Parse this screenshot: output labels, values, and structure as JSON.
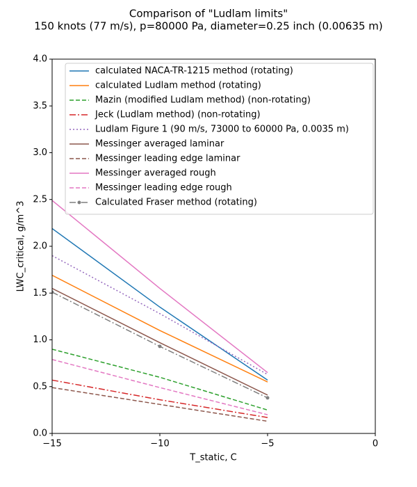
{
  "chart_data": {
    "type": "line",
    "title": "Comparison of \"Ludlam limits\"",
    "subtitle": "150 knots (77 m/s), p=80000 Pa, diameter=0.25 inch (0.00635 m)",
    "x_label": "T_static, C",
    "y_label": "LWC_critical, g/m^3",
    "x": [
      -15,
      -10,
      -5
    ],
    "xlim": [
      -15,
      0
    ],
    "xticks": [
      {
        "value": -15,
        "label": "−15"
      },
      {
        "value": -10,
        "label": "−10"
      },
      {
        "value": -5,
        "label": "−5"
      },
      0
    ],
    "ylim": [
      0,
      4
    ],
    "yticks": [
      {
        "value": 0,
        "label": "0.0"
      },
      {
        "value": 0.5,
        "label": "0.5"
      },
      {
        "value": 1,
        "label": "1.0"
      },
      {
        "value": 1.5,
        "label": "1.5"
      },
      {
        "value": 2,
        "label": "2.0"
      },
      {
        "value": 2.5,
        "label": "2.5"
      },
      {
        "value": 3,
        "label": "3.0"
      },
      {
        "value": 3.5,
        "label": "3.5"
      },
      {
        "value": 4,
        "label": "4.0"
      }
    ],
    "legend": "upper right",
    "series": [
      {
        "name": "calculated NACA-TR-1215 method (rotating)",
        "color": "#1f77b4",
        "linestyle": "solid",
        "values": [
          2.19,
          1.35,
          0.57
        ]
      },
      {
        "name": "calculated Ludlam method (rotating)",
        "color": "#ff7f0e",
        "linestyle": "solid",
        "values": [
          1.69,
          1.1,
          0.55
        ]
      },
      {
        "name": "Mazin (modified Ludlam method) (non-rotating)",
        "color": "#2ca02c",
        "linestyle": "dashed",
        "values": [
          0.9,
          0.6,
          0.25
        ]
      },
      {
        "name": "Jeck (Ludlam method) (non-rotating)",
        "color": "#d62728",
        "linestyle": "dashdot",
        "values": [
          0.57,
          0.36,
          0.17
        ]
      },
      {
        "name": "Ludlam Figure 1 (90 m/s, 73000 to 60000 Pa, 0.0035 m)",
        "color": "#9467bd",
        "linestyle": "dotted",
        "values": [
          1.9,
          1.28,
          0.63
        ]
      },
      {
        "name": "Messinger averaged laminar",
        "color": "#8c564b",
        "linestyle": "solid",
        "values": [
          1.55,
          0.97,
          0.41
        ]
      },
      {
        "name": "Messinger leading edge laminar",
        "color": "#8c564b",
        "linestyle": "dashed",
        "values": [
          0.49,
          0.31,
          0.13
        ]
      },
      {
        "name": "Messinger averaged rough",
        "color": "#e377c2",
        "linestyle": "solid",
        "values": [
          2.49,
          1.55,
          0.65
        ]
      },
      {
        "name": "Messinger leading edge rough",
        "color": "#e377c2",
        "linestyle": "dashed",
        "values": [
          0.79,
          0.49,
          0.2
        ]
      },
      {
        "name": "Calculated Fraser method (rotating)",
        "color": "#7f7f7f",
        "linestyle": "dashdot",
        "marker": "o",
        "values": [
          1.51,
          0.93,
          0.38
        ]
      }
    ]
  }
}
